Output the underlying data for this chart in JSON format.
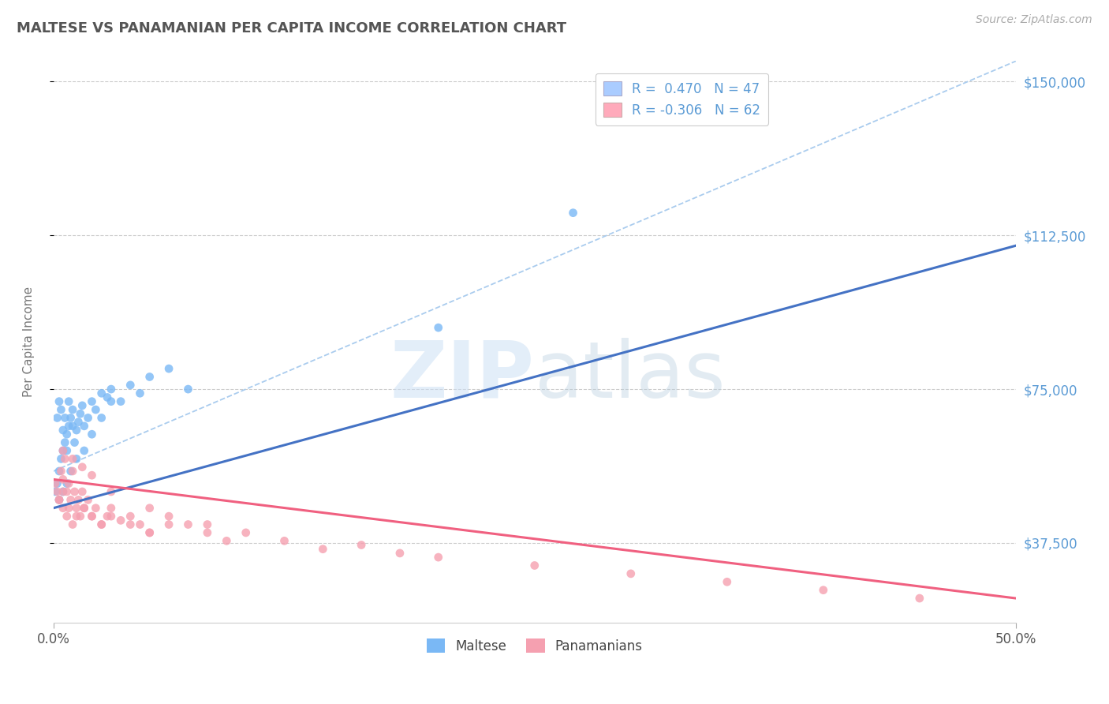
{
  "title": "MALTESE VS PANAMANIAN PER CAPITA INCOME CORRELATION CHART",
  "source": "Source: ZipAtlas.com",
  "ylabel": "Per Capita Income",
  "xlim": [
    0.0,
    0.5
  ],
  "ylim": [
    18000,
    155000
  ],
  "yticks": [
    37500,
    75000,
    112500,
    150000
  ],
  "ytick_labels": [
    "$37,500",
    "$75,000",
    "$112,500",
    "$150,000"
  ],
  "xticks": [
    0.0,
    0.5
  ],
  "xtick_labels": [
    "0.0%",
    "50.0%"
  ],
  "bg_color": "#ffffff",
  "grid_color": "#cccccc",
  "maltese_color": "#7ab8f5",
  "panamanian_color": "#f5a0b0",
  "maltese_line_color": "#4472c4",
  "panamanian_line_color": "#f06080",
  "dashed_line_color": "#aaccee",
  "axis_tick_color": "#5b9bd5",
  "title_color": "#555555",
  "source_color": "#aaaaaa",
  "legend_label1": "R =  0.470   N = 47",
  "legend_label2": "R = -0.306   N = 62",
  "legend_patch_color1": "#aaccff",
  "legend_patch_color2": "#ffaabb",
  "watermark_zip_color": "#ddeeff",
  "watermark_atlas_color": "#ccdde8",
  "bottom_legend_labels": [
    "Maltese",
    "Panamanians"
  ],
  "maltese_scatter_x": [
    0.001,
    0.002,
    0.002,
    0.003,
    0.003,
    0.004,
    0.004,
    0.005,
    0.005,
    0.006,
    0.006,
    0.007,
    0.007,
    0.008,
    0.008,
    0.009,
    0.01,
    0.01,
    0.011,
    0.012,
    0.013,
    0.014,
    0.015,
    0.016,
    0.018,
    0.02,
    0.022,
    0.025,
    0.028,
    0.03,
    0.035,
    0.04,
    0.045,
    0.05,
    0.06,
    0.07,
    0.003,
    0.005,
    0.007,
    0.009,
    0.012,
    0.016,
    0.02,
    0.025,
    0.03,
    0.2,
    0.27
  ],
  "maltese_scatter_y": [
    50000,
    52000,
    68000,
    55000,
    72000,
    58000,
    70000,
    60000,
    65000,
    62000,
    68000,
    64000,
    60000,
    66000,
    72000,
    68000,
    70000,
    66000,
    62000,
    65000,
    67000,
    69000,
    71000,
    66000,
    68000,
    72000,
    70000,
    74000,
    73000,
    75000,
    72000,
    76000,
    74000,
    78000,
    80000,
    75000,
    48000,
    50000,
    52000,
    55000,
    58000,
    60000,
    64000,
    68000,
    72000,
    90000,
    118000
  ],
  "panamanian_scatter_x": [
    0.001,
    0.002,
    0.003,
    0.004,
    0.005,
    0.005,
    0.006,
    0.007,
    0.007,
    0.008,
    0.009,
    0.01,
    0.01,
    0.011,
    0.012,
    0.013,
    0.014,
    0.015,
    0.016,
    0.018,
    0.02,
    0.022,
    0.025,
    0.028,
    0.03,
    0.035,
    0.04,
    0.045,
    0.05,
    0.06,
    0.07,
    0.08,
    0.09,
    0.1,
    0.12,
    0.14,
    0.16,
    0.18,
    0.2,
    0.25,
    0.3,
    0.35,
    0.4,
    0.003,
    0.005,
    0.008,
    0.012,
    0.016,
    0.02,
    0.025,
    0.03,
    0.04,
    0.05,
    0.06,
    0.005,
    0.01,
    0.015,
    0.02,
    0.03,
    0.05,
    0.08,
    0.45
  ],
  "panamanian_scatter_y": [
    52000,
    50000,
    48000,
    55000,
    53000,
    46000,
    58000,
    50000,
    44000,
    52000,
    48000,
    55000,
    42000,
    50000,
    46000,
    48000,
    44000,
    50000,
    46000,
    48000,
    44000,
    46000,
    42000,
    44000,
    46000,
    43000,
    44000,
    42000,
    40000,
    44000,
    42000,
    40000,
    38000,
    40000,
    38000,
    36000,
    37000,
    35000,
    34000,
    32000,
    30000,
    28000,
    26000,
    48000,
    50000,
    46000,
    44000,
    46000,
    44000,
    42000,
    44000,
    42000,
    40000,
    42000,
    60000,
    58000,
    56000,
    54000,
    50000,
    46000,
    42000,
    24000
  ],
  "maltese_line_x0": 0.0,
  "maltese_line_y0": 46000,
  "maltese_line_x1": 0.5,
  "maltese_line_y1": 110000,
  "panamanian_line_x0": 0.0,
  "panamanian_line_y0": 53000,
  "panamanian_line_x1": 0.5,
  "panamanian_line_y1": 24000,
  "dashed_line_x0": 0.0,
  "dashed_line_y0": 55000,
  "dashed_line_x1": 0.5,
  "dashed_line_y1": 155000
}
